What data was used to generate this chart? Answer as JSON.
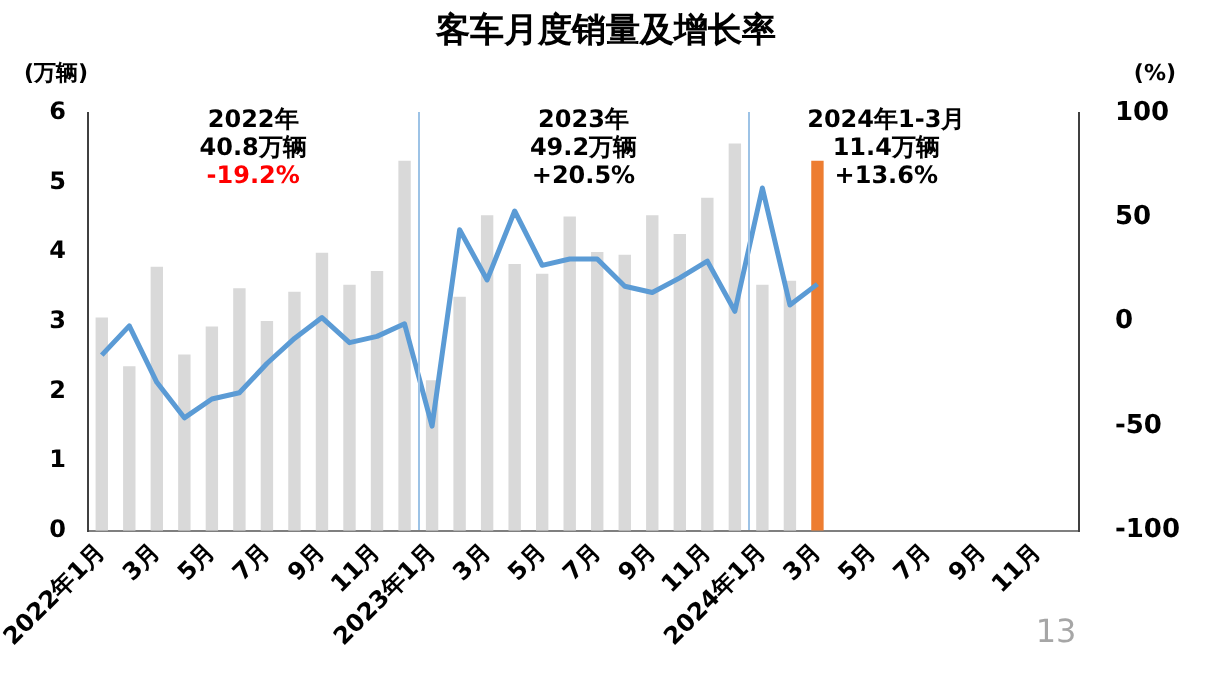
{
  "chart_data": {
    "type": "bar",
    "title": "客车月度销量及增长率",
    "ylabel": "(万辆)",
    "y2label": "(%)",
    "categories": [
      "2022年1月",
      null,
      "3月",
      null,
      "5月",
      null,
      "7月",
      null,
      "9月",
      null,
      "11月",
      null,
      "2023年1月",
      null,
      "3月",
      null,
      "5月",
      null,
      "7月",
      null,
      "9月",
      null,
      "11月",
      null,
      "2024年1月",
      null,
      "3月",
      null,
      "5月",
      null,
      "7月",
      null,
      "9月",
      null,
      "11月",
      null
    ],
    "series": [
      {
        "colors": [
          "#d9d9d9",
          "#d9d9d9",
          "#d9d9d9",
          "#d9d9d9",
          "#d9d9d9",
          "#d9d9d9",
          "#d9d9d9",
          "#d9d9d9",
          "#d9d9d9",
          "#d9d9d9",
          "#d9d9d9",
          "#d9d9d9",
          "#d9d9d9",
          "#d9d9d9",
          "#d9d9d9",
          "#d9d9d9",
          "#d9d9d9",
          "#d9d9d9",
          "#d9d9d9",
          "#d9d9d9",
          "#d9d9d9",
          "#d9d9d9",
          "#d9d9d9",
          "#d9d9d9",
          "#d9d9d9",
          "#d9d9d9",
          "#ed7d31",
          null,
          null,
          null,
          null,
          null,
          null,
          null,
          null,
          null
        ],
        "values": [
          3.06,
          2.36,
          3.79,
          2.53,
          2.93,
          3.48,
          3.01,
          3.43,
          3.99,
          3.53,
          3.73,
          5.31,
          2.16,
          3.36,
          4.53,
          3.83,
          3.69,
          4.51,
          4.0,
          3.96,
          4.53,
          4.26,
          4.78,
          5.56,
          3.53,
          3.59,
          5.31,
          null,
          null,
          null,
          null,
          null,
          null,
          null,
          null,
          null
        ]
      },
      {
        "type": "line",
        "axis": "y2",
        "color": "#5b9bd5",
        "values": [
          -16,
          -2,
          -29,
          -46,
          -37,
          -34,
          -20,
          -8,
          2,
          -10,
          -7,
          -1,
          -50,
          44,
          20,
          53,
          27,
          30,
          30,
          17,
          14,
          21,
          29,
          5,
          64,
          8,
          18,
          null,
          null,
          null,
          null,
          null,
          null,
          null,
          null,
          null
        ]
      }
    ],
    "ylim": [
      0,
      6
    ],
    "yticks": [
      0,
      1,
      2,
      3,
      4,
      5,
      6
    ],
    "y2lim": [
      -100,
      100
    ],
    "y2ticks": [
      -100,
      -50,
      0,
      50,
      100
    ],
    "grid": false,
    "legend": false,
    "marker": "none",
    "line_style": "solid",
    "annotations": [
      "2022年\n40.8万辆\n-19.2%",
      "2023年\n49.2万辆\n+20.5%",
      "2024年1-3月\n11.4万辆\n+13.6%",
      "13"
    ]
  }
}
